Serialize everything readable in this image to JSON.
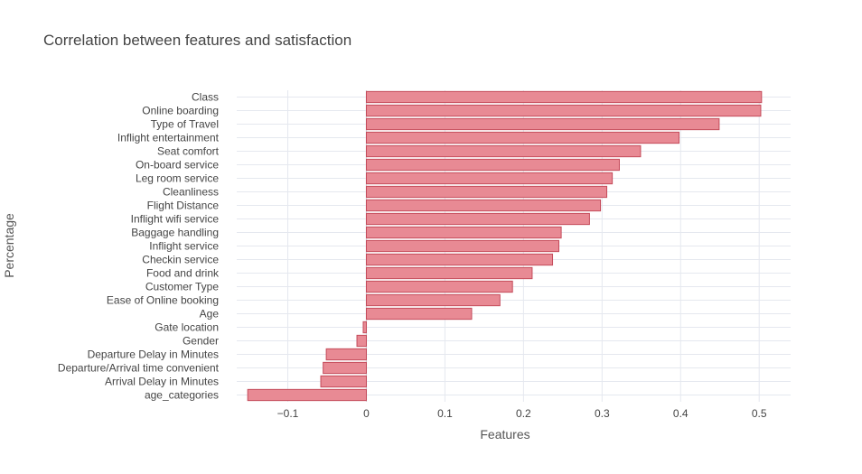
{
  "chart_data": {
    "type": "bar",
    "orientation": "horizontal",
    "title": "Correlation between features and satisfaction",
    "xlabel": "Features",
    "ylabel": "Percentage",
    "xlim": [
      -0.165,
      0.54
    ],
    "xticks": [
      -0.1,
      0,
      0.1,
      0.2,
      0.3,
      0.4,
      0.5
    ],
    "xtick_labels": [
      "−0.1",
      "0",
      "0.1",
      "0.2",
      "0.3",
      "0.4",
      "0.5"
    ],
    "grid": true,
    "bar_color": "#e88a94",
    "bar_edge_color": "#c44a5a",
    "categories": [
      "Class",
      "Online boarding",
      "Type of Travel",
      "Inflight entertainment",
      "Seat comfort",
      "On-board service",
      "Leg room service",
      "Cleanliness",
      "Flight Distance",
      "Inflight wifi service",
      "Baggage handling",
      "Inflight service",
      "Checkin service",
      "Food and drink",
      "Customer Type",
      "Ease of Online booking",
      "Age",
      "Gate location",
      "Gender",
      "Departure Delay in Minutes",
      "Departure/Arrival time convenient",
      "Arrival Delay in Minutes",
      "age_categories"
    ],
    "values": [
      0.503,
      0.502,
      0.449,
      0.398,
      0.349,
      0.322,
      0.313,
      0.306,
      0.298,
      0.284,
      0.248,
      0.245,
      0.237,
      0.211,
      0.186,
      0.17,
      0.134,
      -0.004,
      -0.012,
      -0.051,
      -0.055,
      -0.058,
      -0.151
    ]
  }
}
